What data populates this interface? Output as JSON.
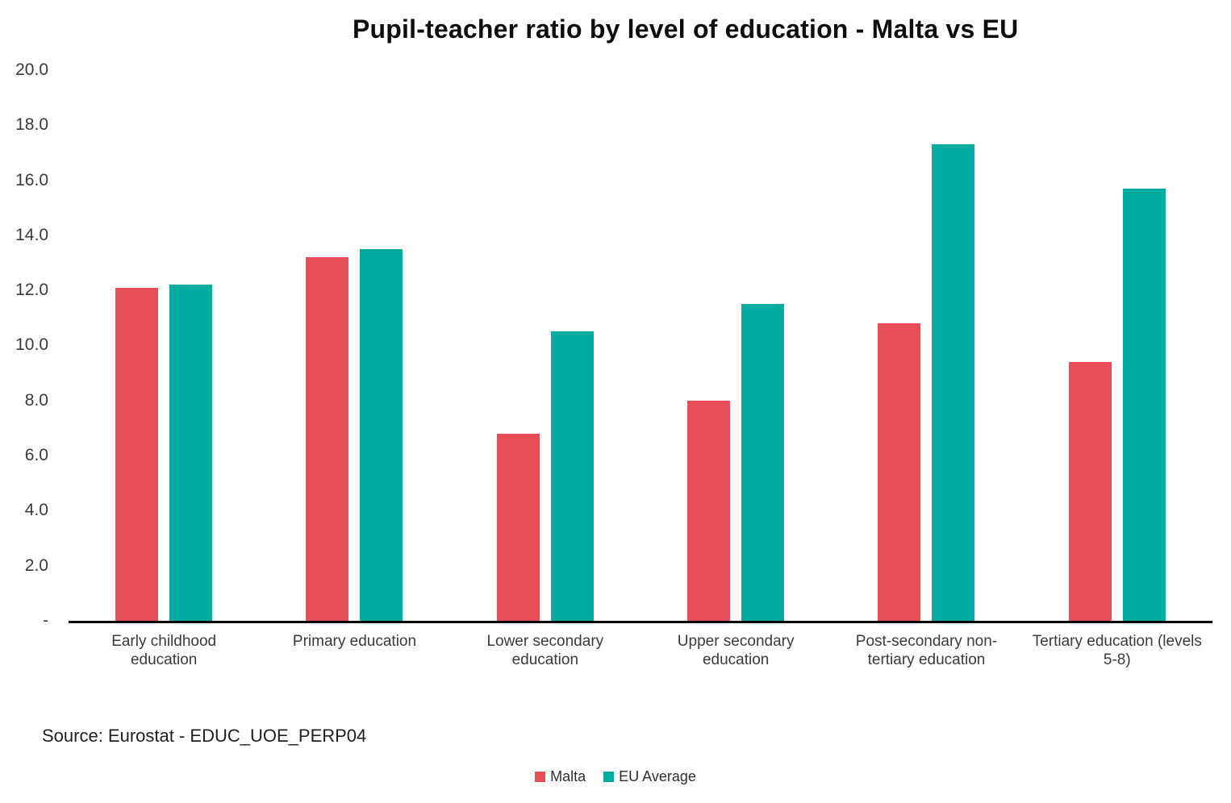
{
  "title": "Pupil-teacher ratio by level of education - Malta vs EU",
  "source": "Source: Eurostat - EDUC_UOE_PERP04",
  "colors": {
    "malta": "#E84D58",
    "eu_average": "#00ACA0",
    "axis": "#000000"
  },
  "chart_data": {
    "type": "bar",
    "title": "Pupil-teacher ratio by level of education - Malta vs EU",
    "categories": [
      "Early childhood education",
      "Primary education",
      "Lower secondary education",
      "Upper secondary education",
      "Post-secondary non-tertiary education",
      "Tertiary education (levels 5-8)"
    ],
    "category_display_lines": [
      [
        "Early childhood",
        "education"
      ],
      [
        "Primary education"
      ],
      [
        "Lower secondary",
        "education"
      ],
      [
        "Upper secondary",
        "education"
      ],
      [
        "Post-secondary non-",
        "tertiary education"
      ],
      [
        "Tertiary education (levels",
        "5-8)"
      ]
    ],
    "series": [
      {
        "name": "Malta",
        "color": "#E84D58",
        "values": [
          12.1,
          13.2,
          6.8,
          8.0,
          10.8,
          9.4
        ]
      },
      {
        "name": "EU Average",
        "color": "#00ACA0",
        "values": [
          12.2,
          13.5,
          10.5,
          11.5,
          17.3,
          15.7
        ]
      }
    ],
    "xlabel": "",
    "ylabel": "",
    "ylim": [
      0,
      20
    ],
    "ytick_step": 2,
    "ytick_labels": [
      "20.0",
      "18.0",
      "16.0",
      "14.0",
      "12.0",
      "10.0",
      "8.0",
      "6.0",
      "4.0",
      "2.0",
      "-"
    ],
    "grid": false,
    "legend_position": "bottom",
    "source_note": "Source: Eurostat - EDUC_UOE_PERP04"
  }
}
